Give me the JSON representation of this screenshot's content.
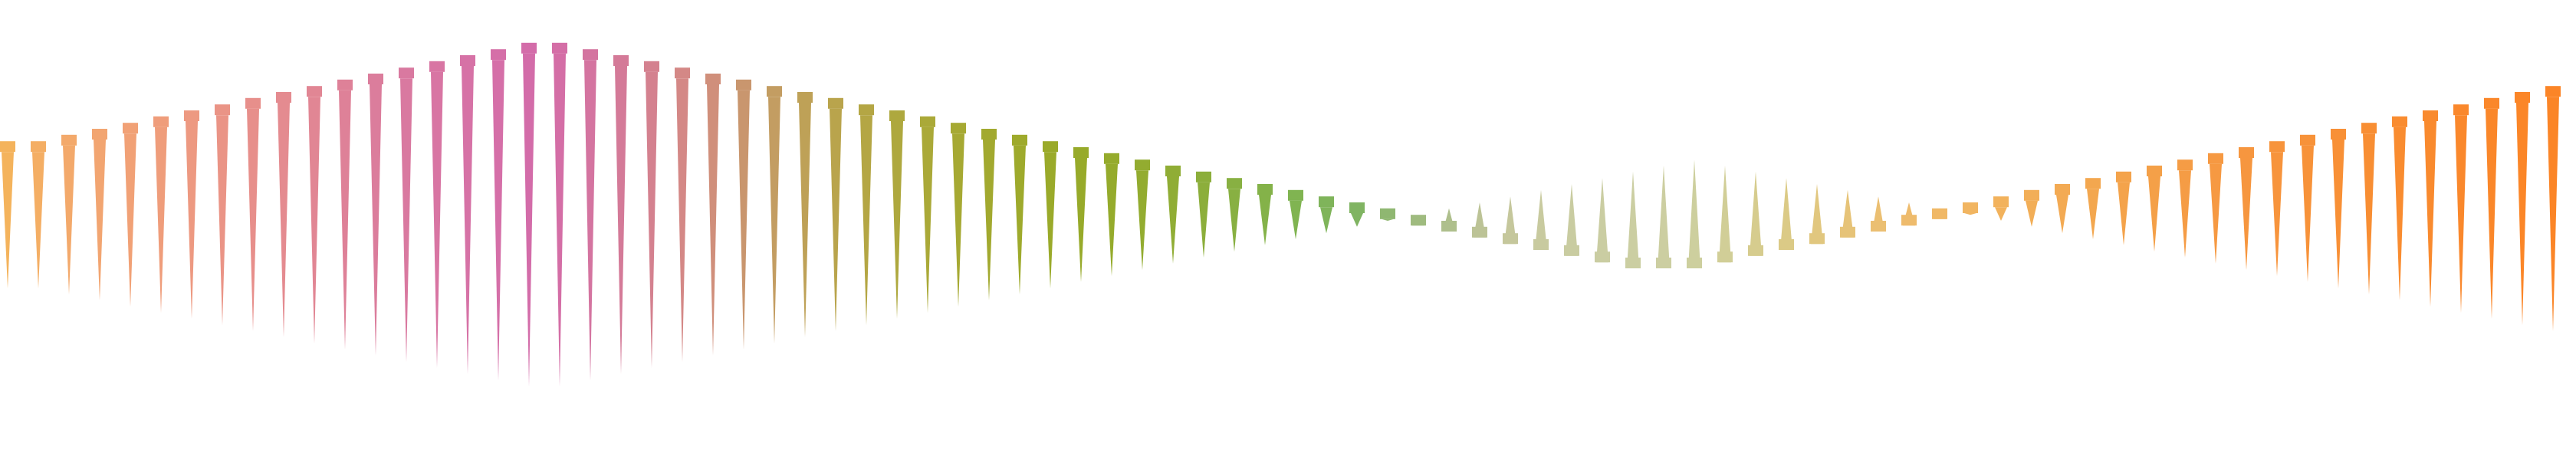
{
  "artwork": {
    "description_free": true,
    "count": 84,
    "top_level": [
      0.693,
      0.693,
      0.707,
      0.72,
      0.733,
      0.747,
      0.76,
      0.773,
      0.787,
      0.8,
      0.813,
      0.827,
      0.84,
      0.853,
      0.867,
      0.88,
      0.893,
      0.907,
      0.907,
      0.893,
      0.88,
      0.867,
      0.853,
      0.84,
      0.827,
      0.813,
      0.8,
      0.787,
      0.773,
      0.76,
      0.747,
      0.733,
      0.72,
      0.707,
      0.693,
      0.68,
      0.667,
      0.653,
      0.64,
      0.627,
      0.613,
      0.6,
      0.587,
      0.573,
      0.56,
      0.547,
      0.533,
      0.52,
      0.507,
      0.493,
      0.48,
      0.467,
      0.453,
      0.44,
      0.44,
      0.44,
      0.453,
      0.467,
      0.48,
      0.493,
      0.507,
      0.52,
      0.533,
      0.547,
      0.56,
      0.573,
      0.587,
      0.6,
      0.613,
      0.627,
      0.64,
      0.653,
      0.667,
      0.68,
      0.693,
      0.707,
      0.72,
      0.733,
      0.747,
      0.76,
      0.773,
      0.787,
      0.8,
      0.813
    ],
    "tip_level": [
      0.373,
      0.373,
      0.36,
      0.347,
      0.333,
      0.32,
      0.307,
      0.293,
      0.28,
      0.267,
      0.253,
      0.24,
      0.227,
      0.213,
      0.2,
      0.187,
      0.173,
      0.16,
      0.16,
      0.173,
      0.187,
      0.2,
      0.213,
      0.227,
      0.24,
      0.253,
      0.267,
      0.28,
      0.293,
      0.307,
      0.32,
      0.333,
      0.347,
      0.36,
      0.373,
      0.387,
      0.4,
      0.413,
      0.427,
      0.44,
      0.453,
      0.467,
      0.48,
      0.493,
      0.507,
      0.52,
      0.533,
      0.547,
      0.56,
      0.573,
      0.587,
      0.6,
      0.613,
      0.627,
      0.64,
      0.653,
      0.64,
      0.627,
      0.613,
      0.6,
      0.587,
      0.573,
      0.56,
      0.547,
      0.533,
      0.52,
      0.507,
      0.493,
      0.48,
      0.467,
      0.453,
      0.44,
      0.427,
      0.413,
      0.4,
      0.387,
      0.373,
      0.36,
      0.347,
      0.333,
      0.32,
      0.307,
      0.293,
      0.28
    ],
    "colors": [
      "#f4b35c",
      "#f4ae64",
      "#f3a96b",
      "#f2a571",
      "#f1a176",
      "#ef9d7b",
      "#ed9981",
      "#ea9486",
      "#e78f8b",
      "#e48b90",
      "#e18694",
      "#de8198",
      "#db7d9c",
      "#d979a0",
      "#d875a3",
      "#d672a6",
      "#d56fa8",
      "#d36ca9",
      "#d46ea6",
      "#d474a0",
      "#d47a98",
      "#d4818f",
      "#d48886",
      "#d08f7b",
      "#c9966e",
      "#c39d62",
      "#bea157",
      "#b9a44c",
      "#b4a644",
      "#aea83e",
      "#aaa938",
      "#a6a933",
      "#a2a92f",
      "#9eaa2c",
      "#9aaa2a",
      "#97aa2a",
      "#95ab2c",
      "#93ac30",
      "#90ad35",
      "#8cae3b",
      "#88b042",
      "#84b249",
      "#80b451",
      "#7fb45a",
      "#80b462",
      "#8fb771",
      "#9fbb7f",
      "#aebf8c",
      "#bcc396",
      "#c5c79c",
      "#c8ca9f",
      "#c9cca1",
      "#cacda2",
      "#cbcea2",
      "#cccea1",
      "#cdcf9e",
      "#d1ce97",
      "#d6cc8e",
      "#dbca86",
      "#e1c77f",
      "#e6c378",
      "#ebbf72",
      "#eebb6c",
      "#f0b866",
      "#f1b561",
      "#f2b25c",
      "#f2ae57",
      "#f3aa53",
      "#f3a74f",
      "#f4a34b",
      "#f4a048",
      "#f59c45",
      "#f69942",
      "#f6963f",
      "#f7943c",
      "#f79239",
      "#f89036",
      "#f88e33",
      "#f98c30",
      "#f98a2e",
      "#fa882c",
      "#fa872a",
      "#fb8628",
      "#fb8527"
    ]
  }
}
